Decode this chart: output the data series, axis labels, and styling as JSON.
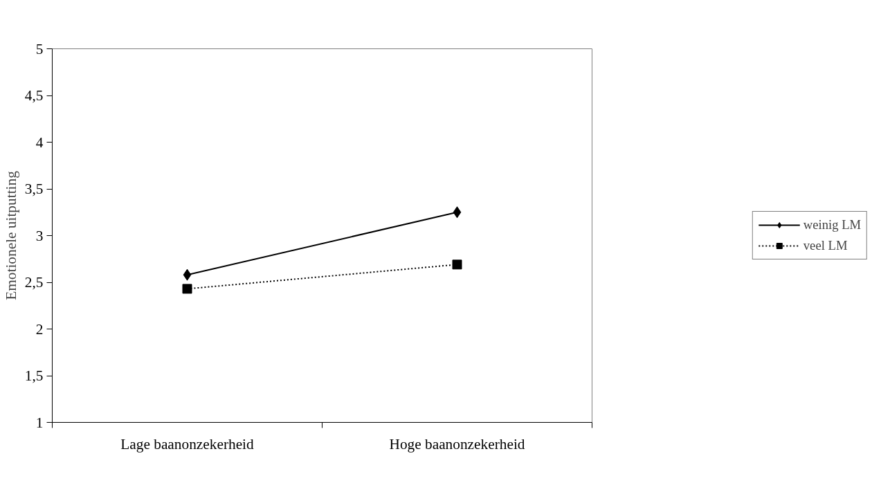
{
  "chart_data": {
    "type": "line",
    "ylabel": "Emotionele uitputting",
    "categories": [
      "Lage baanonzekerheid",
      "Hoge baanonzekerheid"
    ],
    "series": [
      {
        "name": "weinig LM",
        "color": "#000000",
        "values": [
          2.58,
          3.25
        ],
        "marker": "diamond",
        "line_style": "solid"
      },
      {
        "name": "veel LM",
        "color": "#000000",
        "values": [
          2.43,
          2.69
        ],
        "marker": "square",
        "line_style": "dotted"
      }
    ],
    "ylim": [
      1,
      5
    ],
    "yticks": [
      1,
      {
        "value": 1.5,
        "label": "1,5"
      },
      2,
      {
        "value": 2.5,
        "label": "2,5"
      },
      3,
      {
        "value": 3.5,
        "label": "3,5"
      },
      4,
      {
        "value": 4.5,
        "label": "4,5"
      },
      5
    ],
    "grid": false,
    "legend": "right"
  }
}
